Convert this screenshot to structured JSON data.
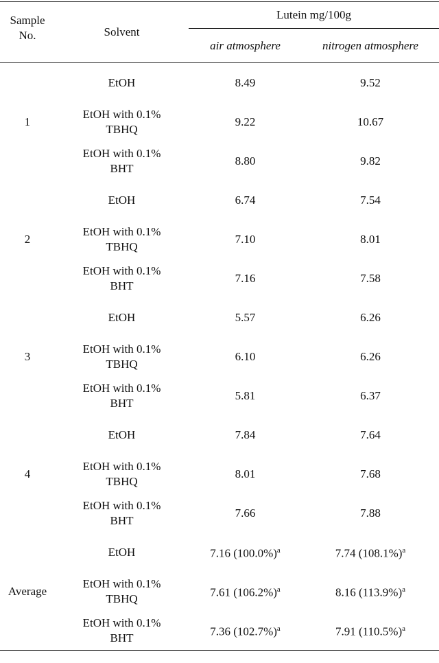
{
  "header": {
    "sample": "Sample No.",
    "solvent": "Solvent",
    "group": "Lutein mg/100g",
    "columns": [
      "air atmosphere",
      "nitrogen atmosphere"
    ]
  },
  "groups": [
    {
      "label": "1",
      "rows": [
        {
          "solvent": "EtOH",
          "air": "8.49",
          "nitrogen": "9.52"
        },
        {
          "solvent": "EtOH with 0.1% TBHQ",
          "air": "9.22",
          "nitrogen": "10.67"
        },
        {
          "solvent": "EtOH with 0.1% BHT",
          "air": "8.80",
          "nitrogen": "9.82"
        }
      ]
    },
    {
      "label": "2",
      "rows": [
        {
          "solvent": "EtOH",
          "air": "6.74",
          "nitrogen": "7.54"
        },
        {
          "solvent": "EtOH with 0.1% TBHQ",
          "air": "7.10",
          "nitrogen": "8.01"
        },
        {
          "solvent": "EtOH with 0.1% BHT",
          "air": "7.16",
          "nitrogen": "7.58"
        }
      ]
    },
    {
      "label": "3",
      "rows": [
        {
          "solvent": "EtOH",
          "air": "5.57",
          "nitrogen": "6.26"
        },
        {
          "solvent": "EtOH with 0.1% TBHQ",
          "air": "6.10",
          "nitrogen": "6.26"
        },
        {
          "solvent": "EtOH with 0.1% BHT",
          "air": "5.81",
          "nitrogen": "6.37"
        }
      ]
    },
    {
      "label": "4",
      "rows": [
        {
          "solvent": "EtOH",
          "air": "7.84",
          "nitrogen": "7.64"
        },
        {
          "solvent": "EtOH with 0.1% TBHQ",
          "air": "8.01",
          "nitrogen": "7.68"
        },
        {
          "solvent": "EtOH with 0.1% BHT",
          "air": "7.66",
          "nitrogen": "7.88"
        }
      ]
    },
    {
      "label": "Average",
      "rows": [
        {
          "solvent": "EtOH",
          "air": "7.16 (100.0%)",
          "air_note": "a",
          "nitrogen": "7.74 (108.1%)",
          "nitrogen_note": "a"
        },
        {
          "solvent": "EtOH with 0.1% TBHQ",
          "air": "7.61 (106.2%)",
          "air_note": "a",
          "nitrogen": "8.16 (113.9%)",
          "nitrogen_note": "a"
        },
        {
          "solvent": "EtOH with 0.1% BHT",
          "air": "7.36 (102.7%)",
          "air_note": "a",
          "nitrogen": "7.91 (110.5%)",
          "nitrogen_note": "a"
        }
      ]
    }
  ]
}
